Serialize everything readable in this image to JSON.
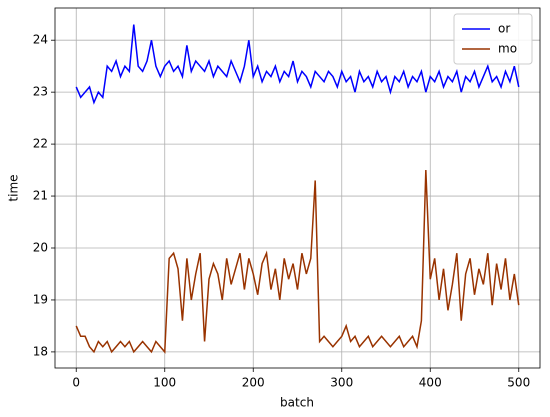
{
  "chart_data": {
    "type": "line",
    "x": [
      0,
      5,
      10,
      15,
      20,
      25,
      30,
      35,
      40,
      45,
      50,
      55,
      60,
      65,
      70,
      75,
      80,
      85,
      90,
      95,
      100,
      105,
      110,
      115,
      120,
      125,
      130,
      135,
      140,
      145,
      150,
      155,
      160,
      165,
      170,
      175,
      180,
      185,
      190,
      195,
      200,
      205,
      210,
      215,
      220,
      225,
      230,
      235,
      240,
      245,
      250,
      255,
      260,
      265,
      270,
      275,
      280,
      285,
      290,
      295,
      300,
      305,
      310,
      315,
      320,
      325,
      330,
      335,
      340,
      345,
      350,
      355,
      360,
      365,
      370,
      375,
      380,
      385,
      390,
      395,
      400,
      405,
      410,
      415,
      420,
      425,
      430,
      435,
      440,
      445,
      450,
      455,
      460,
      465,
      470,
      475,
      480,
      485,
      490,
      495,
      500
    ],
    "series": [
      {
        "name": "or",
        "color": "#0000ff",
        "values": [
          23.1,
          22.9,
          23.0,
          23.1,
          22.8,
          23.0,
          22.9,
          23.5,
          23.4,
          23.6,
          23.3,
          23.5,
          23.4,
          24.3,
          23.5,
          23.4,
          23.6,
          24.0,
          23.5,
          23.3,
          23.5,
          23.6,
          23.4,
          23.5,
          23.3,
          23.9,
          23.4,
          23.6,
          23.5,
          23.4,
          23.6,
          23.3,
          23.5,
          23.4,
          23.3,
          23.6,
          23.4,
          23.2,
          23.5,
          24.0,
          23.3,
          23.5,
          23.2,
          23.4,
          23.3,
          23.5,
          23.2,
          23.4,
          23.3,
          23.6,
          23.2,
          23.4,
          23.3,
          23.1,
          23.4,
          23.3,
          23.2,
          23.4,
          23.3,
          23.1,
          23.4,
          23.2,
          23.3,
          23.0,
          23.4,
          23.2,
          23.3,
          23.1,
          23.4,
          23.2,
          23.3,
          23.0,
          23.3,
          23.2,
          23.4,
          23.1,
          23.3,
          23.2,
          23.4,
          23.0,
          23.3,
          23.2,
          23.4,
          23.1,
          23.3,
          23.2,
          23.4,
          23.0,
          23.3,
          23.2,
          23.4,
          23.1,
          23.3,
          23.5,
          23.2,
          23.3,
          23.1,
          23.4,
          23.2,
          23.5,
          23.1
        ]
      },
      {
        "name": "mo",
        "color": "#993300",
        "values": [
          18.5,
          18.3,
          18.3,
          18.1,
          18.0,
          18.2,
          18.1,
          18.2,
          18.0,
          18.1,
          18.2,
          18.1,
          18.2,
          18.0,
          18.1,
          18.2,
          18.1,
          18.0,
          18.2,
          18.1,
          18.0,
          19.8,
          19.9,
          19.6,
          18.6,
          19.8,
          19.0,
          19.5,
          19.9,
          18.2,
          19.4,
          19.7,
          19.5,
          19.0,
          19.8,
          19.3,
          19.6,
          19.9,
          19.2,
          19.8,
          19.5,
          19.1,
          19.7,
          19.9,
          19.2,
          19.6,
          19.0,
          19.8,
          19.4,
          19.7,
          19.2,
          19.9,
          19.5,
          19.8,
          21.3,
          18.2,
          18.3,
          18.2,
          18.1,
          18.2,
          18.3,
          18.5,
          18.2,
          18.3,
          18.1,
          18.2,
          18.3,
          18.1,
          18.2,
          18.3,
          18.2,
          18.1,
          18.2,
          18.3,
          18.1,
          18.2,
          18.3,
          18.1,
          18.6,
          21.5,
          19.4,
          19.8,
          19.0,
          19.6,
          18.8,
          19.3,
          19.9,
          18.6,
          19.5,
          19.8,
          19.1,
          19.6,
          19.3,
          19.9,
          18.9,
          19.7,
          19.2,
          19.8,
          19.0,
          19.5,
          18.9
        ]
      }
    ],
    "xlabel": "batch",
    "ylabel": "time",
    "xlim": [
      -24,
      524
    ],
    "ylim": [
      17.69,
      24.62
    ],
    "xticks": [
      0,
      100,
      200,
      300,
      400,
      500
    ],
    "yticks": [
      18,
      19,
      20,
      21,
      22,
      23,
      24
    ],
    "grid": true,
    "legend": "upper right"
  }
}
